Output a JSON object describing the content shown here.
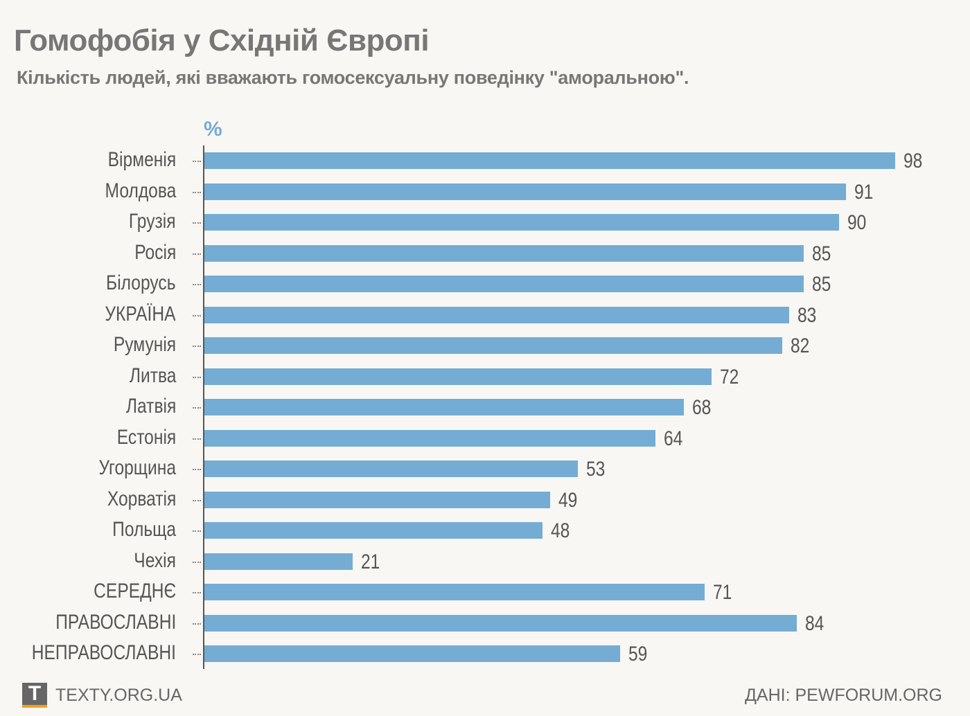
{
  "chart_data": {
    "type": "bar",
    "orientation": "horizontal",
    "title": "Гомофобія у Східній Європі",
    "subtitle": "Кількість людей, які вважають гомосексуальну поведінку \"аморальною\".",
    "unit": "%",
    "categories": [
      "Вірменія",
      "Молдова",
      "Грузія",
      "Росія",
      "Білорусь",
      "УКРАЇНА",
      "Румунія",
      "Литва",
      "Латвія",
      "Естонія",
      "Угорщина",
      "Хорватія",
      "Польща",
      "Чехія",
      "СЕРЕДНЄ",
      "ПРАВОСЛАВНІ",
      "НЕПРАВОСЛАВНІ"
    ],
    "values": [
      98,
      91,
      90,
      85,
      85,
      83,
      82,
      72,
      68,
      64,
      53,
      49,
      48,
      21,
      71,
      84,
      59
    ],
    "xlim": [
      0,
      100
    ],
    "bar_color": "#74acd4",
    "grid": false
  },
  "footer": {
    "logo_letter": "T",
    "site": "TEXTY.ORG.UA",
    "source": "ДАНІ: PEWFORUM.ORG"
  }
}
